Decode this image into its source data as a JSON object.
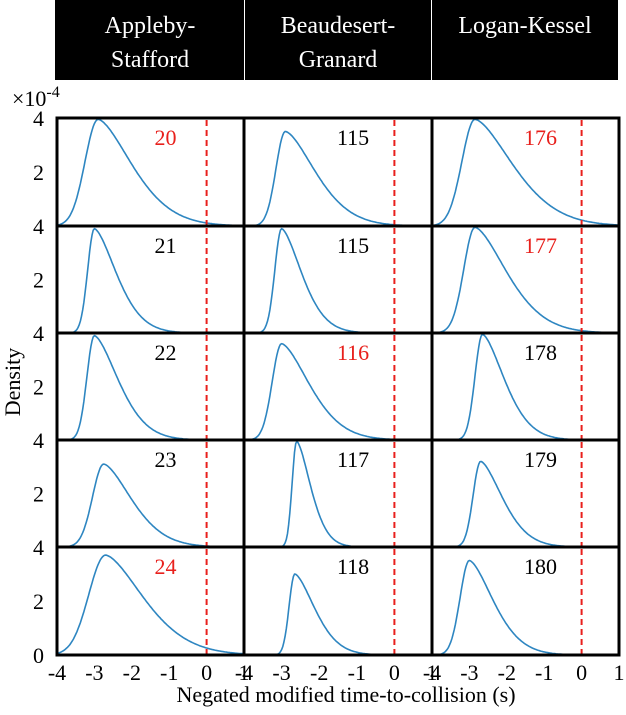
{
  "columns": [
    "Appleby-\nStafford",
    "Beaudesert-\nGranard",
    "Logan-Kessel"
  ],
  "y_exponent": "×10",
  "y_exponent_power": "-4",
  "colors": {
    "curve": "#2e86c1",
    "threshold": "#e8201c",
    "red_label": "#e8201c",
    "black_label": "#000000",
    "header_bg": "#000000"
  },
  "chart_data": {
    "type": "line",
    "ylabel": "Density",
    "xlabel": "Negated modified time-to-collision (s)",
    "xlim": [
      -4,
      1
    ],
    "ylim": [
      0,
      4
    ],
    "xticks": [
      -4,
      -3,
      -2,
      -1,
      0,
      1
    ],
    "xtick_labels": [
      "-4",
      "-3",
      "-2",
      "-1",
      "0",
      "1"
    ],
    "yticks": [
      0,
      2,
      4
    ],
    "threshold_x": 0,
    "panels": [
      [
        {
          "id": "20",
          "highlight": true,
          "peak_x": -2.9,
          "peak_y": 3.95,
          "sigma_l": 0.35,
          "sigma_r": 0.85
        },
        {
          "id": "115",
          "highlight": false,
          "peak_x": -2.9,
          "peak_y": 3.5,
          "sigma_l": 0.25,
          "sigma_r": 0.75
        },
        {
          "id": "176",
          "highlight": true,
          "peak_x": -2.85,
          "peak_y": 3.95,
          "sigma_l": 0.35,
          "sigma_r": 0.95
        }
      ],
      [
        {
          "id": "21",
          "highlight": false,
          "peak_x": -3.0,
          "peak_y": 3.9,
          "sigma_l": 0.18,
          "sigma_r": 0.55
        },
        {
          "id": "115",
          "highlight": false,
          "peak_x": -3.0,
          "peak_y": 3.9,
          "sigma_l": 0.18,
          "sigma_r": 0.5
        },
        {
          "id": "177",
          "highlight": true,
          "peak_x": -2.85,
          "peak_y": 3.95,
          "sigma_l": 0.3,
          "sigma_r": 0.8
        }
      ],
      [
        {
          "id": "22",
          "highlight": false,
          "peak_x": -3.0,
          "peak_y": 3.9,
          "sigma_l": 0.2,
          "sigma_r": 0.6
        },
        {
          "id": "116",
          "highlight": true,
          "peak_x": -3.0,
          "peak_y": 3.6,
          "sigma_l": 0.25,
          "sigma_r": 0.7
        },
        {
          "id": "178",
          "highlight": false,
          "peak_x": -2.65,
          "peak_y": 3.95,
          "sigma_l": 0.2,
          "sigma_r": 0.55
        }
      ],
      [
        {
          "id": "23",
          "highlight": false,
          "peak_x": -2.75,
          "peak_y": 3.1,
          "sigma_l": 0.3,
          "sigma_r": 0.7
        },
        {
          "id": "117",
          "highlight": false,
          "peak_x": -2.6,
          "peak_y": 3.95,
          "sigma_l": 0.12,
          "sigma_r": 0.35
        },
        {
          "id": "179",
          "highlight": false,
          "peak_x": -2.7,
          "peak_y": 3.2,
          "sigma_l": 0.2,
          "sigma_r": 0.55
        }
      ],
      [
        {
          "id": "24",
          "highlight": true,
          "peak_x": -2.7,
          "peak_y": 3.7,
          "sigma_l": 0.45,
          "sigma_r": 0.95
        },
        {
          "id": "118",
          "highlight": false,
          "peak_x": -2.65,
          "peak_y": 3.0,
          "sigma_l": 0.15,
          "sigma_r": 0.5
        },
        {
          "id": "180",
          "highlight": false,
          "peak_x": -3.0,
          "peak_y": 3.5,
          "sigma_l": 0.25,
          "sigma_r": 0.6
        }
      ]
    ]
  }
}
